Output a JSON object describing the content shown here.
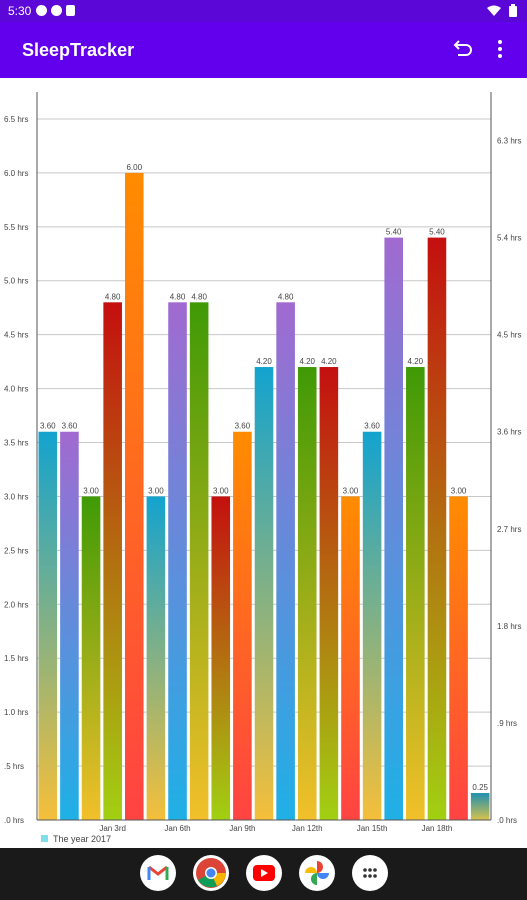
{
  "status_bar": {
    "time": "5:30"
  },
  "app_bar": {
    "title": "SleepTracker"
  },
  "navbar": {
    "apps": [
      "gmail-icon",
      "chrome-icon",
      "youtube-icon",
      "photos-icon",
      "app-drawer-icon"
    ]
  },
  "chart_data": {
    "type": "bar",
    "x_tick_labels": [
      "Jan 3rd",
      "Jan 6th",
      "Jan 9th",
      "Jan 12th",
      "Jan 15th",
      "Jan 18th"
    ],
    "values": [
      3.6,
      3.6,
      3.0,
      4.8,
      6.0,
      3.0,
      4.8,
      4.8,
      3.0,
      3.6,
      4.2,
      4.8,
      4.2,
      4.2,
      3.0,
      3.6,
      5.4,
      4.2,
      5.4,
      3.0,
      0.25
    ],
    "value_labels": [
      "3.60",
      "3.60",
      "3.00",
      "4.80",
      "6.00",
      "3.00",
      "4.80",
      "4.80",
      "3.00",
      "3.60",
      "4.20",
      "4.80",
      "4.20",
      "4.20",
      "3.00",
      "3.60",
      "5.40",
      "4.20",
      "5.40",
      "3.00",
      "0.25"
    ],
    "left_axis": {
      "ylim": [
        0,
        6.75
      ],
      "ticks": [
        0,
        0.5,
        1.0,
        1.5,
        2.0,
        2.5,
        3.0,
        3.5,
        4.0,
        4.5,
        5.0,
        5.5,
        6.0,
        6.5
      ],
      "tick_labels": [
        ".0 hrs",
        ".5 hrs",
        "1.0 hrs",
        "1.5 hrs",
        "2.0 hrs",
        "2.5 hrs",
        "3.0 hrs",
        "3.5 hrs",
        "4.0 hrs",
        "4.5 hrs",
        "5.0 hrs",
        "5.5 hrs",
        "6.0 hrs",
        "6.5 hrs"
      ]
    },
    "right_axis": {
      "ylim": [
        0,
        6.75
      ],
      "ticks": [
        0,
        0.9,
        1.8,
        2.7,
        3.6,
        4.5,
        5.4,
        6.3
      ],
      "tick_labels": [
        ".0 hrs",
        ".9 hrs",
        "1.8 hrs",
        "2.7 hrs",
        "3.6 hrs",
        "4.5 hrs",
        "5.4 hrs",
        "6.3 hrs"
      ]
    },
    "legend": {
      "label": "The year 2017",
      "color": "#80deea",
      "placement": "bottom-left"
    },
    "colors": {
      "gradients": [
        [
          "#13a3cf",
          "#f5bf3a"
        ],
        [
          "#a16ad0",
          "#1fb0e6"
        ],
        [
          "#3f9a06",
          "#f2c02a"
        ],
        [
          "#c40f0f",
          "#a2d012"
        ],
        [
          "#ff8c00",
          "#ff4343"
        ]
      ],
      "last_bar": [
        "#1e8fb0",
        "#d8c24a"
      ],
      "grid": "#c8c8c8",
      "axis": "#555555",
      "label": "#444444"
    }
  }
}
